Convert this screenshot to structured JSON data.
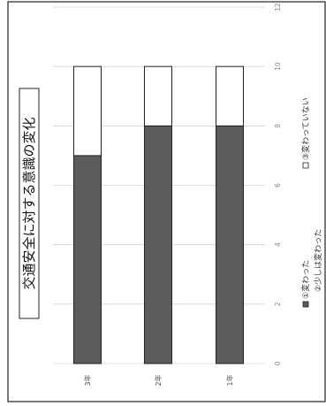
{
  "chart_data": {
    "type": "bar",
    "stacked": true,
    "orientation": "horizontal",
    "title": "交通安全に対する意識の変化",
    "categories": [
      "3年",
      "2年",
      "1年"
    ],
    "series": [
      {
        "name": "①変わった",
        "values": [
          7,
          8,
          8
        ],
        "color": "#5c5c5c"
      },
      {
        "name": "②少しは変わった",
        "values": [
          0,
          0,
          0
        ],
        "color": "#9a9a9a"
      },
      {
        "name": "③変わっていない",
        "values": [
          3,
          2,
          2
        ],
        "color": "#ffffff"
      }
    ],
    "value_axis": {
      "min": 0,
      "max": 12,
      "ticks": [
        "0",
        "2",
        "4",
        "6",
        "8",
        "10",
        "12"
      ]
    },
    "grid": true,
    "legend_position": "bottom"
  }
}
